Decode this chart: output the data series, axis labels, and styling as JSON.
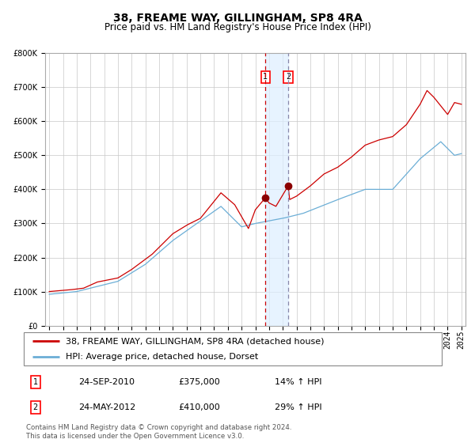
{
  "title": "38, FREAME WAY, GILLINGHAM, SP8 4RA",
  "subtitle": "Price paid vs. HM Land Registry's House Price Index (HPI)",
  "x_start_year": 1995,
  "x_end_year": 2025,
  "y_min": 0,
  "y_max": 800000,
  "y_ticks": [
    0,
    100000,
    200000,
    300000,
    400000,
    500000,
    600000,
    700000,
    800000
  ],
  "hpi_color": "#6baed6",
  "price_color": "#cc0000",
  "sale1_date_num": 2010.73,
  "sale1_price": 375000,
  "sale1_label": "1",
  "sale2_date_num": 2012.39,
  "sale2_price": 410000,
  "sale2_label": "2",
  "shade_color": "#ddeeff",
  "dashed_color1": "#cc0000",
  "dashed_color2": "#8888aa",
  "legend_entries": [
    "38, FREAME WAY, GILLINGHAM, SP8 4RA (detached house)",
    "HPI: Average price, detached house, Dorset"
  ],
  "table_rows": [
    [
      "1",
      "24-SEP-2010",
      "£375,000",
      "14% ↑ HPI"
    ],
    [
      "2",
      "24-MAY-2012",
      "£410,000",
      "29% ↑ HPI"
    ]
  ],
  "footer": "Contains HM Land Registry data © Crown copyright and database right 2024.\nThis data is licensed under the Open Government Licence v3.0.",
  "title_fontsize": 10,
  "subtitle_fontsize": 8.5,
  "tick_fontsize": 7,
  "legend_fontsize": 8
}
